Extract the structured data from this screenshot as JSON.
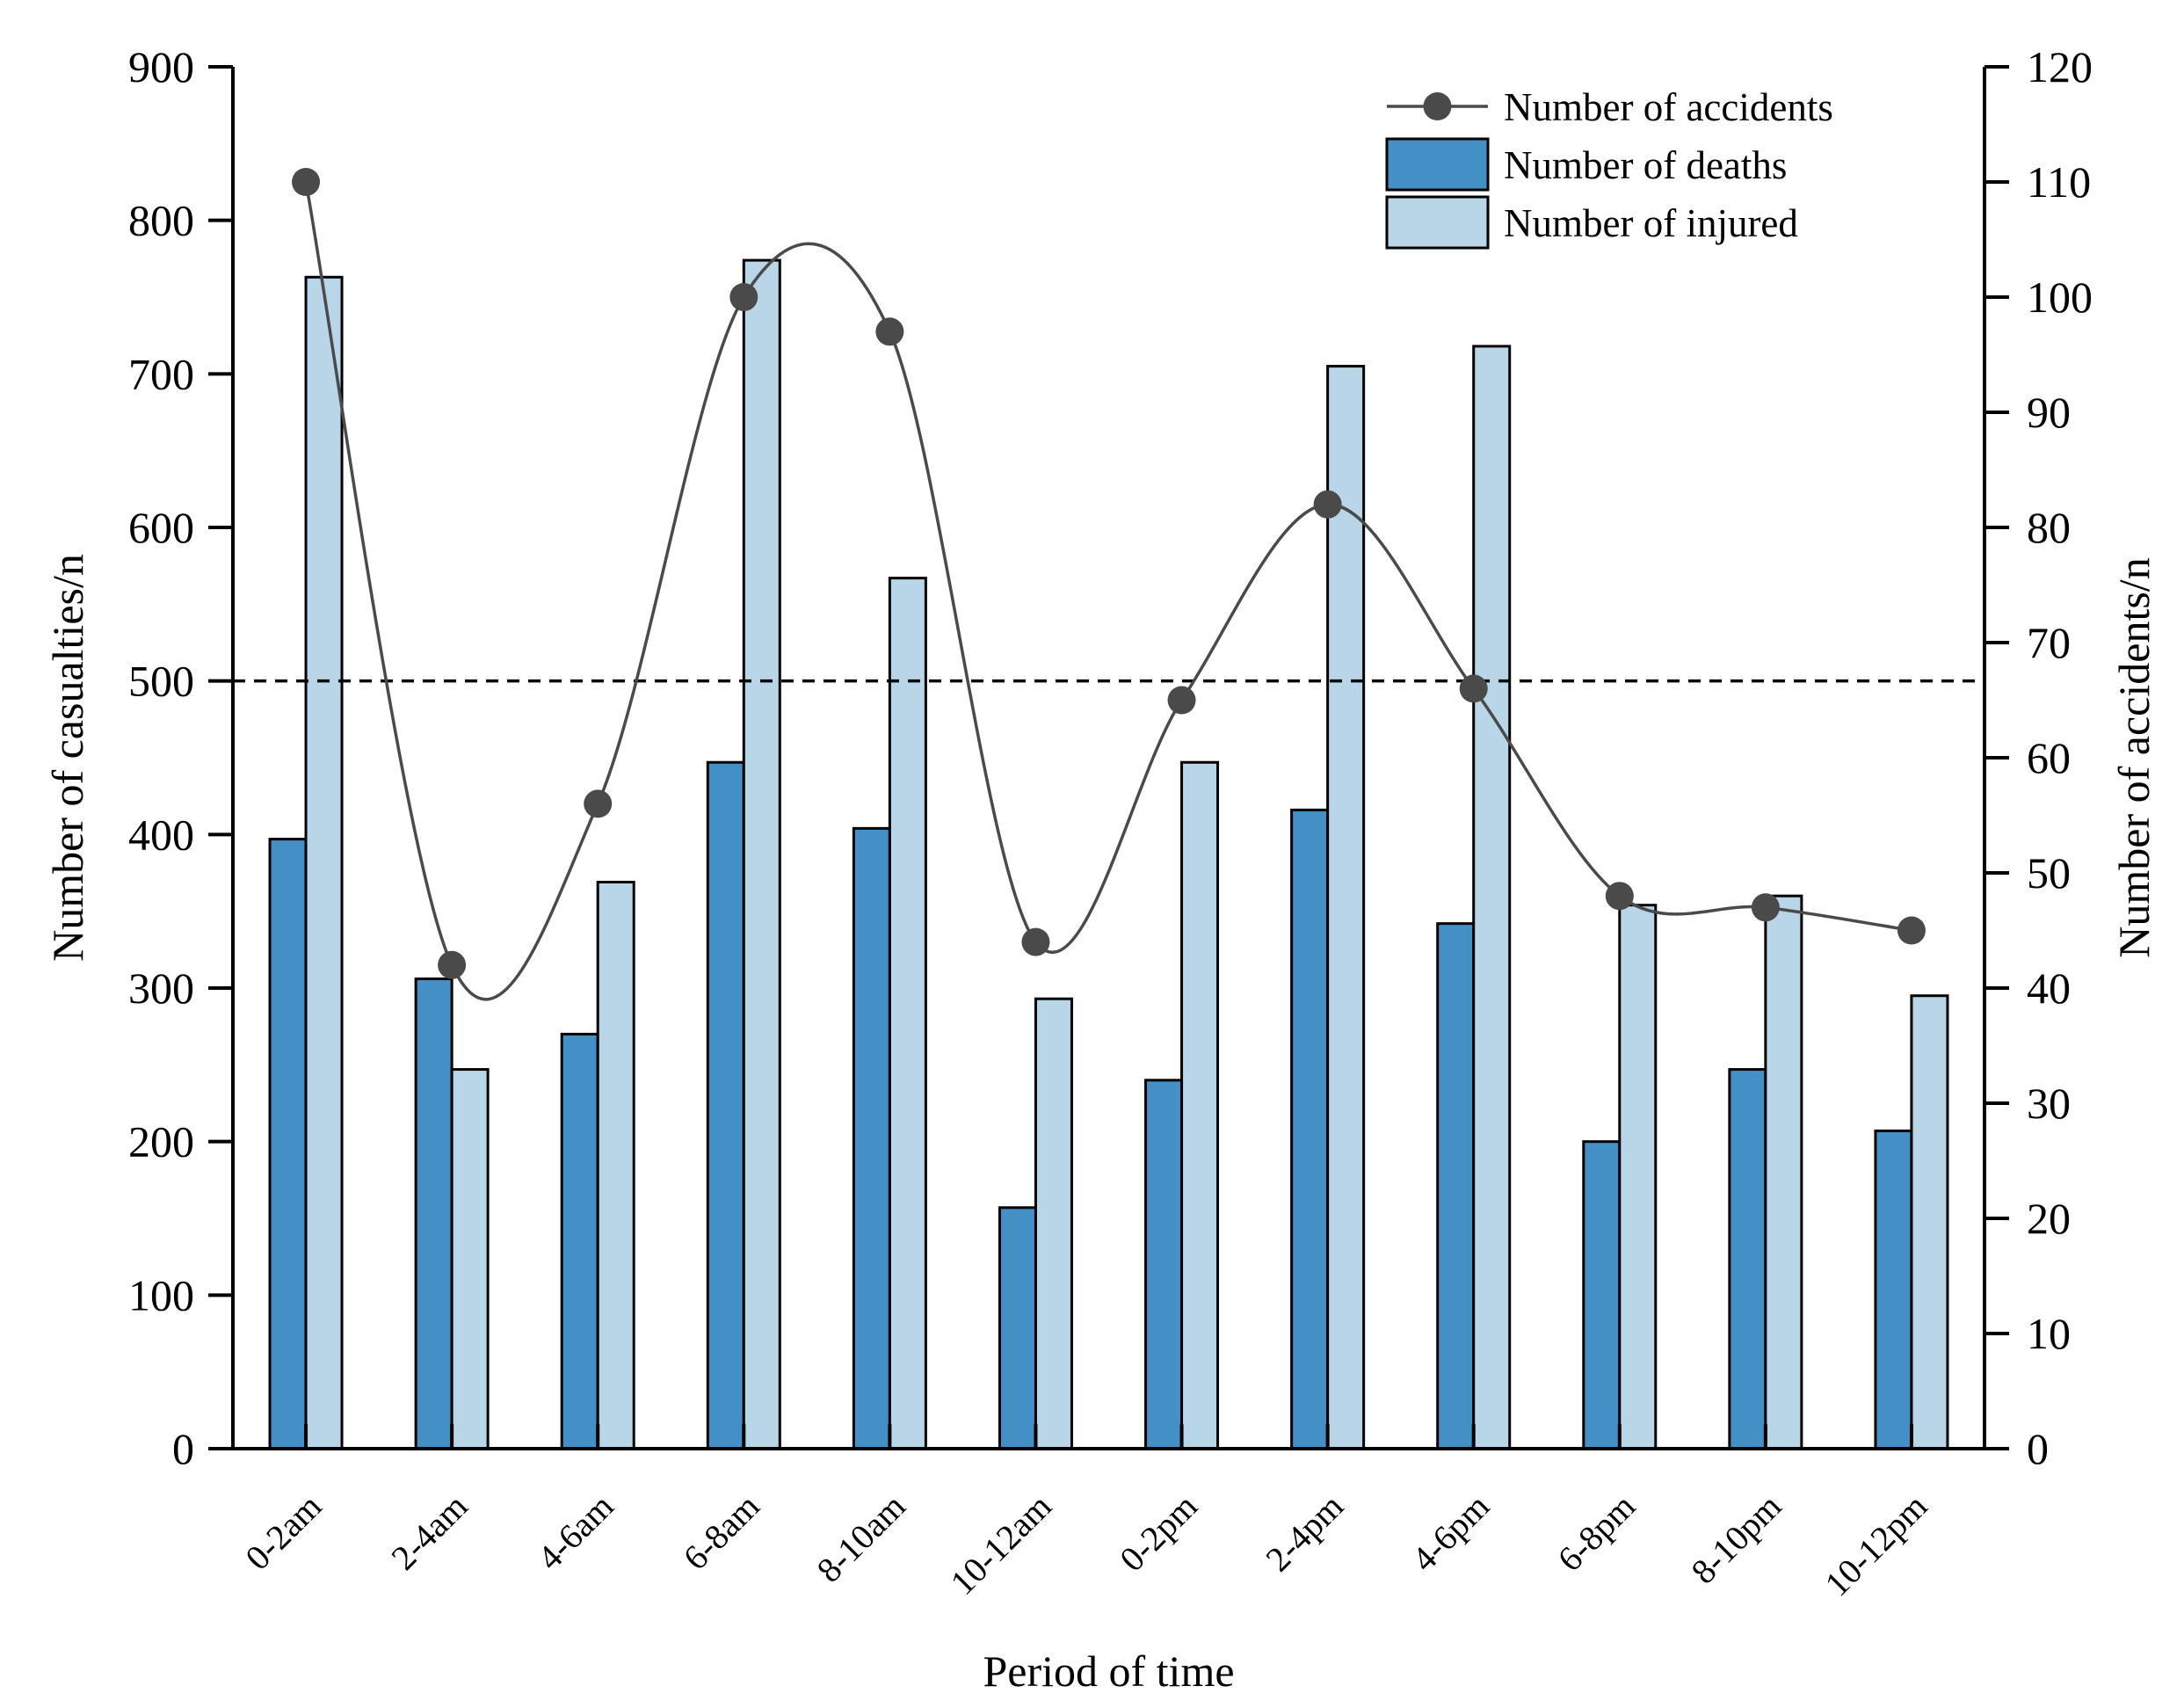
{
  "chart_data": {
    "type": "bar",
    "categories": [
      "0-2am",
      "2-4am",
      "4-6am",
      "6-8am",
      "8-10am",
      "10-12am",
      "0-2pm",
      "2-4pm",
      "4-6pm",
      "6-8pm",
      "8-10pm",
      "10-12pm"
    ],
    "series": [
      {
        "name": "Number of deaths",
        "type": "bar",
        "axis": "left",
        "color": "#4390c6",
        "values": [
          397,
          306,
          270,
          447,
          404,
          157,
          240,
          416,
          342,
          200,
          247,
          207
        ]
      },
      {
        "name": "Number of injured",
        "type": "bar",
        "axis": "left",
        "color": "#b9d6e8",
        "values": [
          763,
          247,
          369,
          774,
          567,
          293,
          447,
          705,
          718,
          354,
          360,
          295
        ]
      },
      {
        "name": "Number of accidents",
        "type": "line",
        "axis": "right",
        "smooth": true,
        "color": "#4a4a4a",
        "values": [
          110,
          42,
          56,
          100,
          97,
          44,
          65,
          82,
          66,
          48,
          47,
          45
        ]
      }
    ],
    "xlabel": "Period of time",
    "ylabel": "Number of casualties/n",
    "y2label": "Number of accidents/n",
    "ylim": [
      0,
      900
    ],
    "y2lim": [
      0,
      120
    ],
    "yticks": [
      0,
      100,
      200,
      300,
      400,
      500,
      600,
      700,
      800,
      900
    ],
    "y2ticks": [
      0,
      10,
      20,
      30,
      40,
      50,
      60,
      70,
      80,
      90,
      100,
      110,
      120
    ],
    "reference_line": {
      "axis": "left",
      "value": 500,
      "style": "dashed"
    },
    "legend": {
      "position": "top-right",
      "entries": [
        "Number of accidents",
        "Number of deaths",
        "Number of injured"
      ]
    },
    "grid": false
  }
}
